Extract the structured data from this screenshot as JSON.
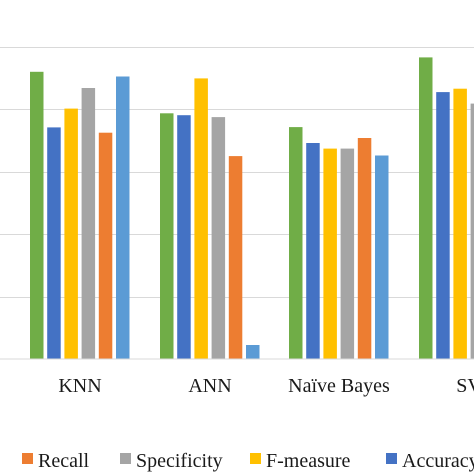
{
  "chart_data": {
    "type": "bar",
    "categories": [
      "KNN",
      "ANN",
      "Naïve Bayes",
      "SV"
    ],
    "series": [
      {
        "name": "",
        "color": "#70ad47",
        "values": [
          0.92,
          0.787,
          0.743,
          0.966
        ]
      },
      {
        "name": "Accuracy",
        "color": "#4472c4",
        "values": [
          0.742,
          0.781,
          0.692,
          0.855
        ]
      },
      {
        "name": "F-measure",
        "color": "#ffc000",
        "values": [
          0.802,
          0.899,
          0.674,
          0.866
        ]
      },
      {
        "name": "Specificity",
        "color": "#a5a5a5",
        "values": [
          0.868,
          0.775,
          0.674,
          0.818
        ]
      },
      {
        "name": "Recall",
        "color": "#ed7d31",
        "values": [
          0.725,
          0.65,
          0.708,
          null
        ]
      },
      {
        "name": "",
        "color": "#5b9bd5",
        "values": [
          0.905,
          0.045,
          0.652,
          null
        ]
      }
    ],
    "legend": {
      "position": "bottom",
      "entries": [
        {
          "label": "Recall",
          "color": "#ed7d31"
        },
        {
          "label": "Specificity",
          "color": "#a5a5a5"
        },
        {
          "label": "F-measure",
          "color": "#ffc000"
        },
        {
          "label": "Accuracy",
          "color": "#4472c4"
        }
      ]
    },
    "ylim": [
      0,
      1.15
    ],
    "grid": true,
    "gridline_values": [
      0.2,
      0.4,
      0.6,
      0.8,
      1.0
    ]
  }
}
